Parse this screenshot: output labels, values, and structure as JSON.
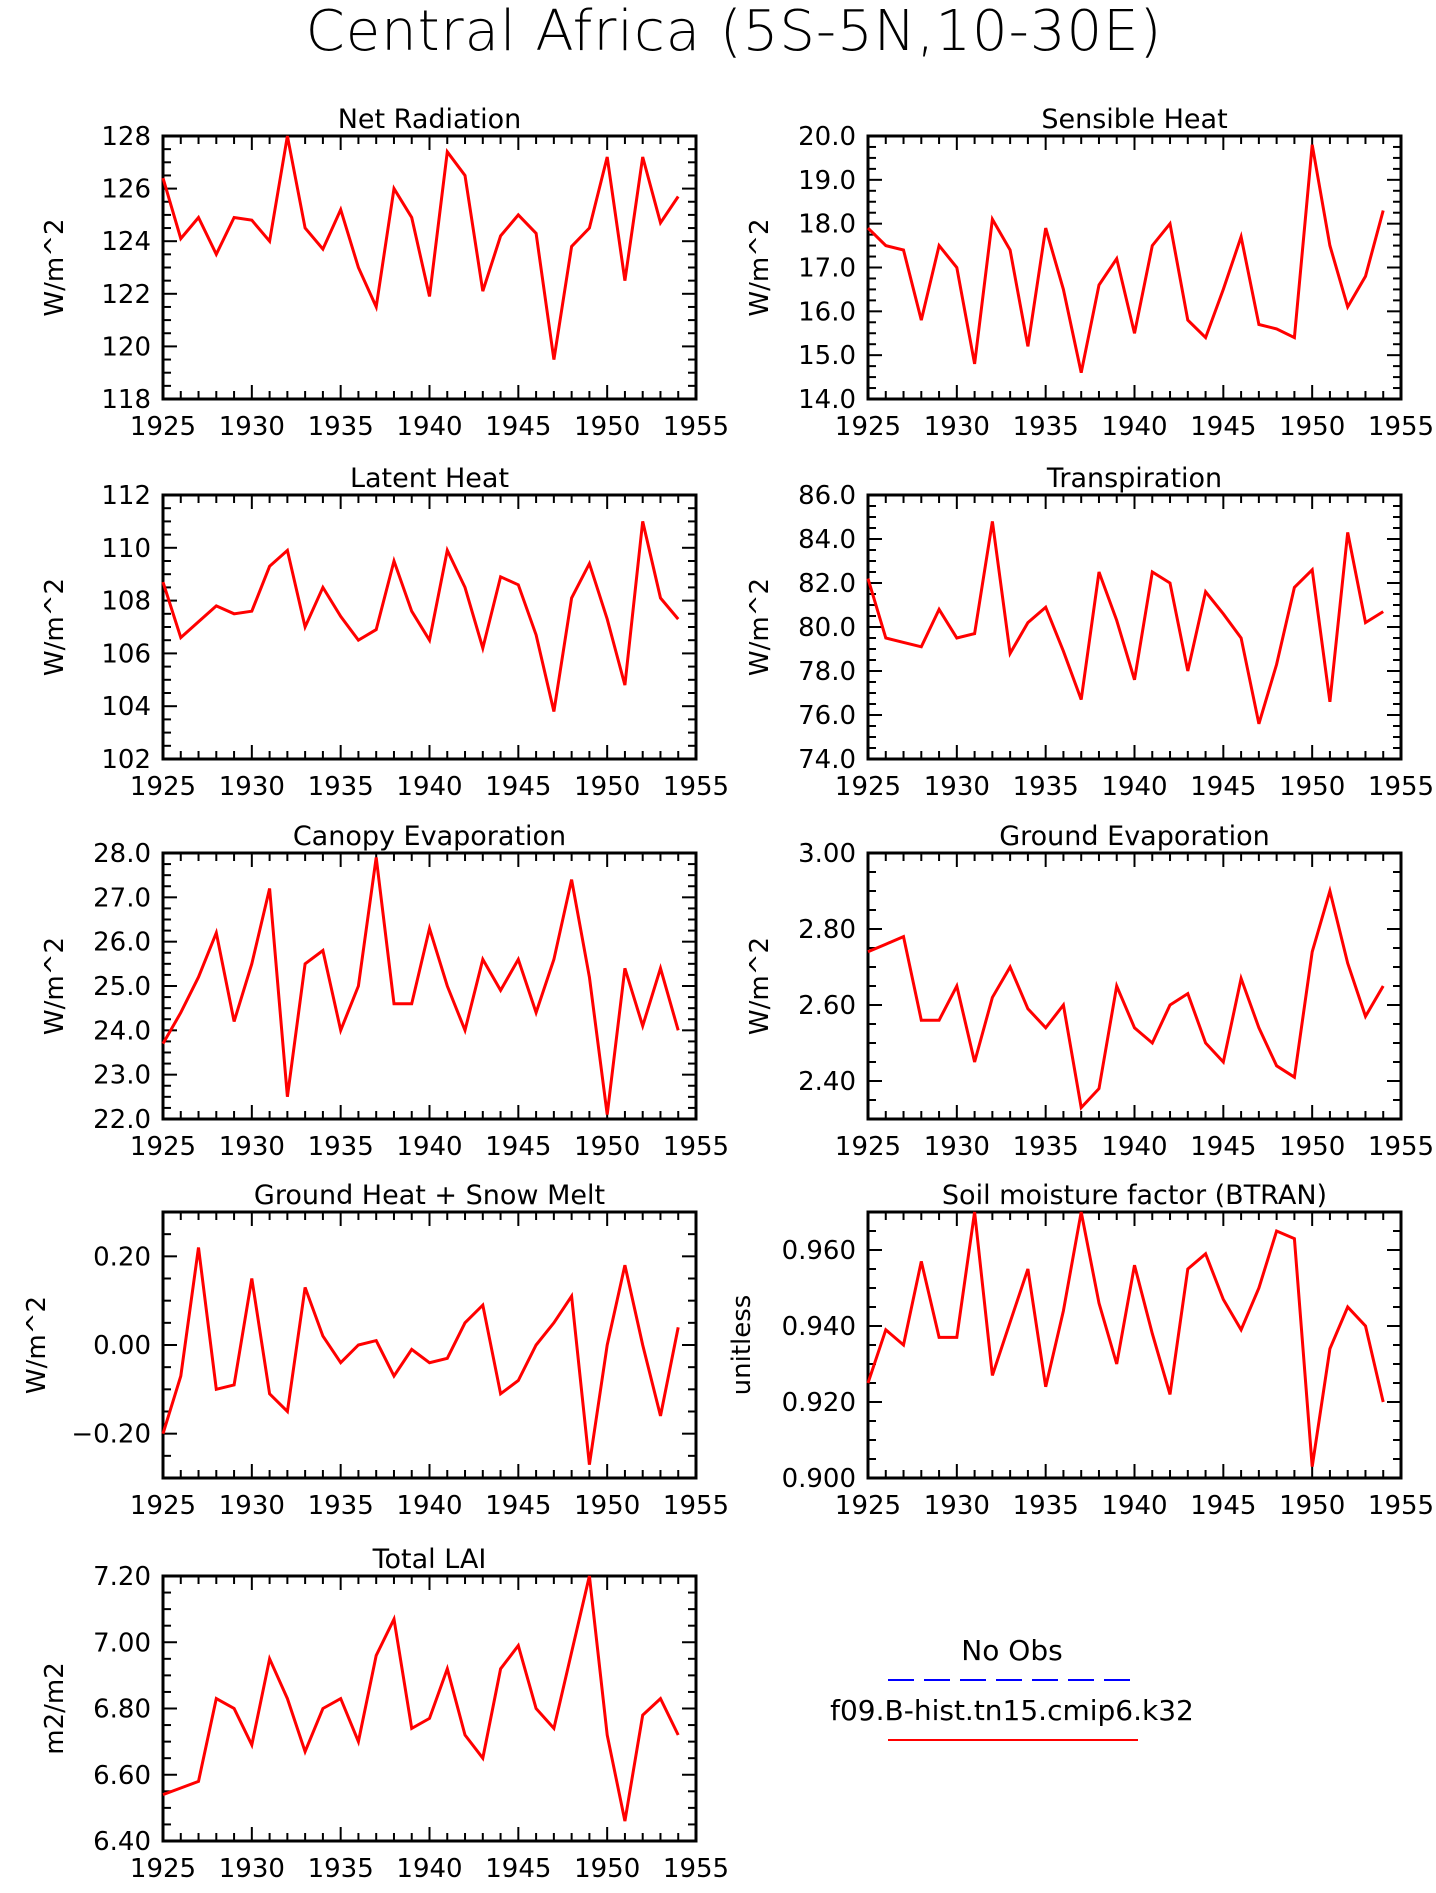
{
  "title": "Central Africa (5S-5N,10-30E)",
  "colors": {
    "model_line": "#ff0000",
    "obs_line": "#0000ff",
    "axes": "#000000"
  },
  "legend": {
    "obs_label": "No Obs",
    "model_label": "f09.B-hist.tn15.cmip6.k32"
  },
  "chart_data": [
    {
      "type": "line",
      "title": "Net Radiation",
      "ylabel": "W/m^2",
      "xlim": [
        1925,
        1955
      ],
      "ylim": [
        118,
        128
      ],
      "xticks": [
        "1925",
        "1930",
        "1935",
        "1940",
        "1945",
        "1950",
        "1955"
      ],
      "yticks": [
        "118",
        "120",
        "122",
        "124",
        "126",
        "128"
      ],
      "x": [
        1925,
        1926,
        1927,
        1928,
        1929,
        1930,
        1931,
        1932,
        1933,
        1934,
        1935,
        1936,
        1937,
        1938,
        1939,
        1940,
        1941,
        1942,
        1943,
        1944,
        1945,
        1946,
        1947,
        1948,
        1949,
        1950,
        1951,
        1952,
        1953,
        1954
      ],
      "series": [
        {
          "values": [
            126.4,
            124.1,
            124.9,
            123.5,
            124.9,
            124.8,
            124.0,
            128.0,
            124.5,
            123.7,
            125.2,
            123.0,
            121.5,
            126.0,
            124.9,
            121.9,
            127.4,
            126.5,
            122.1,
            124.2,
            125.0,
            124.3,
            119.5,
            123.8,
            124.5,
            127.2,
            122.5,
            127.2,
            124.7,
            125.7
          ]
        }
      ]
    },
    {
      "type": "line",
      "title": "Sensible Heat",
      "ylabel": "W/m^2",
      "xlim": [
        1925,
        1955
      ],
      "ylim": [
        14.0,
        20.0
      ],
      "xticks": [
        "1925",
        "1930",
        "1935",
        "1940",
        "1945",
        "1950",
        "1955"
      ],
      "yticks": [
        "14.0",
        "15.0",
        "16.0",
        "17.0",
        "18.0",
        "19.0",
        "20.0"
      ],
      "x": [
        1925,
        1926,
        1927,
        1928,
        1929,
        1930,
        1931,
        1932,
        1933,
        1934,
        1935,
        1936,
        1937,
        1938,
        1939,
        1940,
        1941,
        1942,
        1943,
        1944,
        1945,
        1946,
        1947,
        1948,
        1949,
        1950,
        1951,
        1952,
        1953,
        1954
      ],
      "series": [
        {
          "values": [
            17.9,
            17.5,
            17.4,
            15.8,
            17.5,
            17.0,
            14.8,
            18.1,
            17.4,
            15.2,
            17.9,
            16.5,
            14.6,
            16.6,
            17.2,
            15.5,
            17.5,
            18.0,
            15.8,
            15.4,
            16.5,
            17.7,
            15.7,
            15.6,
            15.4,
            19.8,
            17.5,
            16.1,
            16.8,
            18.3
          ]
        }
      ]
    },
    {
      "type": "line",
      "title": "Latent Heat",
      "ylabel": "W/m^2",
      "xlim": [
        1925,
        1955
      ],
      "ylim": [
        102,
        112
      ],
      "xticks": [
        "1925",
        "1930",
        "1935",
        "1940",
        "1945",
        "1950",
        "1955"
      ],
      "yticks": [
        "102",
        "104",
        "106",
        "108",
        "110",
        "112"
      ],
      "x": [
        1925,
        1926,
        1927,
        1928,
        1929,
        1930,
        1931,
        1932,
        1933,
        1934,
        1935,
        1936,
        1937,
        1938,
        1939,
        1940,
        1941,
        1942,
        1943,
        1944,
        1945,
        1946,
        1947,
        1948,
        1949,
        1950,
        1951,
        1952,
        1953,
        1954
      ],
      "series": [
        {
          "values": [
            108.7,
            106.6,
            107.2,
            107.8,
            107.5,
            107.6,
            109.3,
            109.9,
            107.0,
            108.5,
            107.4,
            106.5,
            106.9,
            109.5,
            107.6,
            106.5,
            109.9,
            108.5,
            106.2,
            108.9,
            108.6,
            106.7,
            103.8,
            108.1,
            109.4,
            107.3,
            104.8,
            111.0,
            108.1,
            107.3
          ]
        }
      ]
    },
    {
      "type": "line",
      "title": "Transpiration",
      "ylabel": "W/m^2",
      "xlim": [
        1925,
        1955
      ],
      "ylim": [
        74.0,
        86.0
      ],
      "xticks": [
        "1925",
        "1930",
        "1935",
        "1940",
        "1945",
        "1950",
        "1955"
      ],
      "yticks": [
        "74.0",
        "76.0",
        "78.0",
        "80.0",
        "82.0",
        "84.0",
        "86.0"
      ],
      "x": [
        1925,
        1926,
        1927,
        1928,
        1929,
        1930,
        1931,
        1932,
        1933,
        1934,
        1935,
        1936,
        1937,
        1938,
        1939,
        1940,
        1941,
        1942,
        1943,
        1944,
        1945,
        1946,
        1947,
        1948,
        1949,
        1950,
        1951,
        1952,
        1953,
        1954
      ],
      "series": [
        {
          "values": [
            82.2,
            79.5,
            79.3,
            79.1,
            80.8,
            79.5,
            79.7,
            84.8,
            78.8,
            80.2,
            80.9,
            78.9,
            76.7,
            82.5,
            80.3,
            77.6,
            82.5,
            82.0,
            78.0,
            81.6,
            80.6,
            79.5,
            75.6,
            78.3,
            81.8,
            82.6,
            76.6,
            84.3,
            80.2,
            80.7
          ]
        }
      ]
    },
    {
      "type": "line",
      "title": "Canopy Evaporation",
      "ylabel": "W/m^2",
      "xlim": [
        1925,
        1955
      ],
      "ylim": [
        22.0,
        28.0
      ],
      "xticks": [
        "1925",
        "1930",
        "1935",
        "1940",
        "1945",
        "1950",
        "1955"
      ],
      "yticks": [
        "22.0",
        "23.0",
        "24.0",
        "25.0",
        "26.0",
        "27.0",
        "28.0"
      ],
      "x": [
        1925,
        1926,
        1927,
        1928,
        1929,
        1930,
        1931,
        1932,
        1933,
        1934,
        1935,
        1936,
        1937,
        1938,
        1939,
        1940,
        1941,
        1942,
        1943,
        1944,
        1945,
        1946,
        1947,
        1948,
        1949,
        1950,
        1951,
        1952,
        1953,
        1954
      ],
      "series": [
        {
          "values": [
            23.7,
            24.4,
            25.2,
            26.2,
            24.2,
            25.5,
            27.2,
            22.5,
            25.5,
            25.8,
            24.0,
            25.0,
            27.9,
            24.6,
            24.6,
            26.3,
            25.0,
            24.0,
            25.6,
            24.9,
            25.6,
            24.4,
            25.6,
            27.4,
            25.2,
            22.1,
            25.4,
            24.1,
            25.4,
            24.0
          ]
        }
      ]
    },
    {
      "type": "line",
      "title": "Ground Evaporation",
      "ylabel": "W/m^2",
      "xlim": [
        1925,
        1955
      ],
      "ylim": [
        2.3,
        3.0
      ],
      "xticks": [
        "1925",
        "1930",
        "1935",
        "1940",
        "1945",
        "1950",
        "1955"
      ],
      "yticks": [
        "2.40",
        "2.60",
        "2.80",
        "3.00"
      ],
      "x": [
        1925,
        1926,
        1927,
        1928,
        1929,
        1930,
        1931,
        1932,
        1933,
        1934,
        1935,
        1936,
        1937,
        1938,
        1939,
        1940,
        1941,
        1942,
        1943,
        1944,
        1945,
        1946,
        1947,
        1948,
        1949,
        1950,
        1951,
        1952,
        1953,
        1954
      ],
      "series": [
        {
          "values": [
            2.74,
            2.76,
            2.78,
            2.56,
            2.56,
            2.65,
            2.45,
            2.62,
            2.7,
            2.59,
            2.54,
            2.6,
            2.33,
            2.38,
            2.65,
            2.54,
            2.5,
            2.6,
            2.63,
            2.5,
            2.45,
            2.67,
            2.54,
            2.44,
            2.41,
            2.74,
            2.9,
            2.71,
            2.57,
            2.65
          ]
        }
      ]
    },
    {
      "type": "line",
      "title": "Ground Heat + Snow Melt",
      "ylabel": "W/m^2",
      "xlim": [
        1925,
        1955
      ],
      "ylim": [
        -0.3,
        0.3
      ],
      "xticks": [
        "1925",
        "1930",
        "1935",
        "1940",
        "1945",
        "1950",
        "1955"
      ],
      "yticks": [
        "-0.20",
        "0.00",
        "0.20"
      ],
      "x": [
        1925,
        1926,
        1927,
        1928,
        1929,
        1930,
        1931,
        1932,
        1933,
        1934,
        1935,
        1936,
        1937,
        1938,
        1939,
        1940,
        1941,
        1942,
        1943,
        1944,
        1945,
        1946,
        1947,
        1948,
        1949,
        1950,
        1951,
        1952,
        1953,
        1954
      ],
      "series": [
        {
          "values": [
            -0.2,
            -0.07,
            0.22,
            -0.1,
            -0.09,
            0.15,
            -0.11,
            -0.15,
            0.13,
            0.02,
            -0.04,
            0.0,
            0.01,
            -0.07,
            -0.01,
            -0.04,
            -0.03,
            0.05,
            0.09,
            -0.11,
            -0.08,
            0.0,
            0.05,
            0.11,
            -0.27,
            0.0,
            0.18,
            0.0,
            -0.16,
            0.04
          ]
        }
      ]
    },
    {
      "type": "line",
      "title": "Soil moisture factor (BTRAN)",
      "ylabel": "unitless",
      "xlim": [
        1925,
        1955
      ],
      "ylim": [
        0.9,
        0.97
      ],
      "xticks": [
        "1925",
        "1930",
        "1935",
        "1940",
        "1945",
        "1950",
        "1955"
      ],
      "yticks": [
        "0.900",
        "0.920",
        "0.940",
        "0.960"
      ],
      "x": [
        1925,
        1926,
        1927,
        1928,
        1929,
        1930,
        1931,
        1932,
        1933,
        1934,
        1935,
        1936,
        1937,
        1938,
        1939,
        1940,
        1941,
        1942,
        1943,
        1944,
        1945,
        1946,
        1947,
        1948,
        1949,
        1950,
        1951,
        1952,
        1953,
        1954
      ],
      "series": [
        {
          "values": [
            0.925,
            0.939,
            0.935,
            0.957,
            0.937,
            0.937,
            0.97,
            0.927,
            0.941,
            0.955,
            0.924,
            0.944,
            0.97,
            0.946,
            0.93,
            0.956,
            0.938,
            0.922,
            0.955,
            0.959,
            0.947,
            0.939,
            0.95,
            0.965,
            0.963,
            0.903,
            0.934,
            0.945,
            0.94,
            0.92
          ]
        }
      ]
    },
    {
      "type": "line",
      "title": "Total LAI",
      "ylabel": "m2/m2",
      "xlim": [
        1925,
        1955
      ],
      "ylim": [
        6.4,
        7.2
      ],
      "xticks": [
        "1925",
        "1930",
        "1935",
        "1940",
        "1945",
        "1950",
        "1955"
      ],
      "yticks": [
        "6.40",
        "6.60",
        "6.80",
        "7.00",
        "7.20"
      ],
      "x": [
        1925,
        1926,
        1927,
        1928,
        1929,
        1930,
        1931,
        1932,
        1933,
        1934,
        1935,
        1936,
        1937,
        1938,
        1939,
        1940,
        1941,
        1942,
        1943,
        1944,
        1945,
        1946,
        1947,
        1948,
        1949,
        1950,
        1951,
        1952,
        1953,
        1954
      ],
      "series": [
        {
          "values": [
            6.54,
            6.56,
            6.58,
            6.83,
            6.8,
            6.69,
            6.95,
            6.83,
            6.67,
            6.8,
            6.83,
            6.7,
            6.96,
            7.07,
            6.74,
            6.77,
            6.92,
            6.72,
            6.65,
            6.92,
            6.99,
            6.8,
            6.74,
            6.97,
            7.2,
            6.72,
            6.46,
            6.78,
            6.83,
            6.72
          ]
        }
      ]
    }
  ]
}
